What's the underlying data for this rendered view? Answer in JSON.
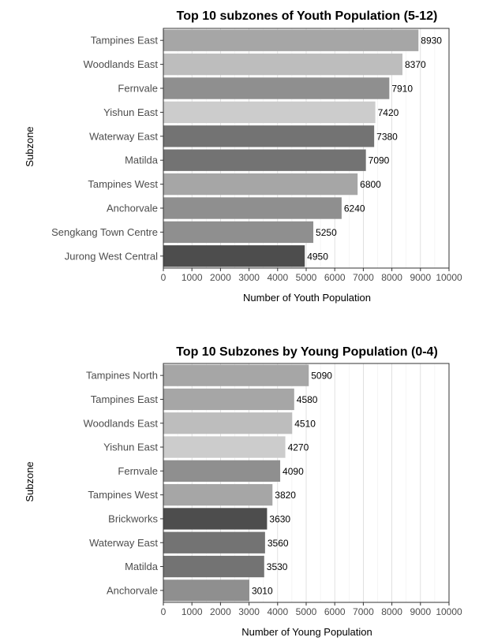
{
  "chart_data": [
    {
      "type": "bar",
      "orientation": "horizontal",
      "title": "Top 10 subzones of Youth Population (5-12)",
      "xlabel": "Number of Youth Population",
      "ylabel": "Subzone",
      "xlim": [
        0,
        10000
      ],
      "xticks": [
        "0",
        "1000",
        "2000",
        "3000",
        "4000",
        "5000",
        "6000",
        "7000",
        "8000",
        "9000",
        "10000"
      ],
      "grid": true,
      "categories": [
        "Tampines East",
        "Woodlands East",
        "Fernvale",
        "Yishun East",
        "Waterway East",
        "Matilda",
        "Tampines West",
        "Anchorvale",
        "Sengkang Town Centre",
        "Jurong West Central"
      ],
      "values": [
        8930,
        8370,
        7910,
        7420,
        7380,
        7090,
        6800,
        6240,
        5250,
        4950
      ],
      "data_labels": [
        "8930",
        "8370",
        "7910",
        "7420",
        "7380",
        "7090",
        "6800",
        "6240",
        "5250",
        "4950"
      ],
      "colors": [
        "#a6a6a6",
        "#bdbdbd",
        "#8f8f8f",
        "#cccccc",
        "#737373",
        "#737373",
        "#a6a6a6",
        "#8f8f8f",
        "#8f8f8f",
        "#4d4d4d"
      ]
    },
    {
      "type": "bar",
      "orientation": "horizontal",
      "title": "Top 10 Subzones by Young Population (0-4)",
      "xlabel": "Number of Young Population",
      "ylabel": "Subzone",
      "xlim": [
        0,
        10000
      ],
      "xticks": [
        "0",
        "1000",
        "2000",
        "3000",
        "4000",
        "5000",
        "6000",
        "7000",
        "8000",
        "9000",
        "10000"
      ],
      "grid": true,
      "categories": [
        "Tampines North",
        "Tampines East",
        "Woodlands East",
        "Yishun East",
        "Fernvale",
        "Tampines West",
        "Brickworks",
        "Waterway East",
        "Matilda",
        "Anchorvale"
      ],
      "values": [
        5090,
        4580,
        4510,
        4270,
        4090,
        3820,
        3630,
        3560,
        3530,
        3010
      ],
      "data_labels": [
        "5090",
        "4580",
        "4510",
        "4270",
        "4090",
        "3820",
        "3630",
        "3560",
        "3530",
        "3010"
      ],
      "colors": [
        "#a6a6a6",
        "#a6a6a6",
        "#bdbdbd",
        "#cccccc",
        "#8f8f8f",
        "#a6a6a6",
        "#4d4d4d",
        "#737373",
        "#737373",
        "#8f8f8f"
      ]
    }
  ]
}
